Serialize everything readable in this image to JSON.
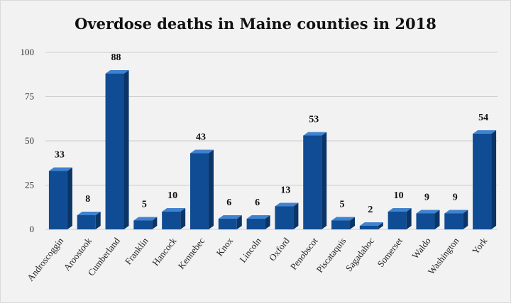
{
  "chart_data": {
    "type": "bar",
    "title": "Overdose deaths in Maine counties in 2018",
    "xlabel": "",
    "ylabel": "",
    "ylim": [
      0,
      100
    ],
    "yticks": [
      "0",
      "25",
      "50",
      "75",
      "100"
    ],
    "grid": true,
    "style": "3d-columns",
    "categories": [
      "Androscoggin",
      "Aroostook",
      "Cumberland",
      "Franklin",
      "Hancock",
      "Kennebec",
      "Knox",
      "Lincoln",
      "Oxford",
      "Penobscot",
      "Piscataquis",
      "Sagadahoc",
      "Somerset",
      "Waldo",
      "Washington",
      "York"
    ],
    "values": [
      33,
      8,
      88,
      5,
      10,
      43,
      6,
      6,
      13,
      53,
      5,
      2,
      10,
      9,
      9,
      54
    ],
    "data_labels": [
      "33",
      "8",
      "88",
      "5",
      "10",
      "43",
      "6",
      "6",
      "13",
      "53",
      "5",
      "2",
      "10",
      "9",
      "9",
      "54"
    ]
  },
  "colors": {
    "bar_front": "#0f4c94",
    "bar_top": "#3f82cf",
    "bar_side": "#0a3566",
    "gridline": "#cccccc",
    "background": "#f2f2f2"
  }
}
